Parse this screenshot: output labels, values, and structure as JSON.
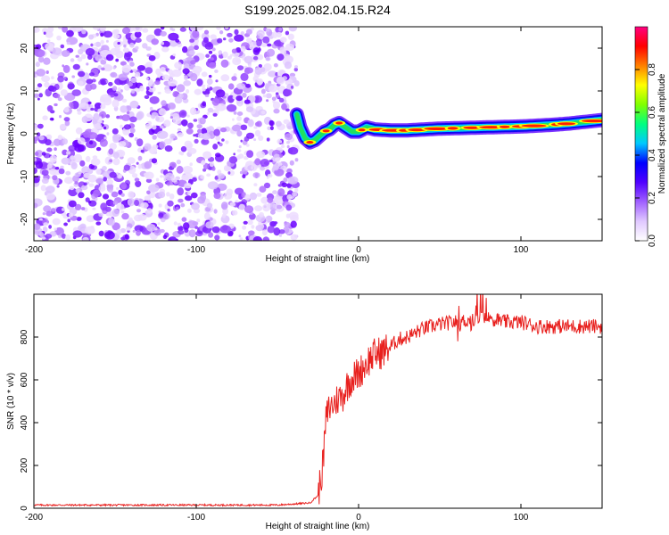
{
  "title": "S199.2025.082.04.15.R24",
  "colors": {
    "snr_line": "#e8201e",
    "spectrum_dots": "#8a2be2",
    "colorbar": [
      "#ffffff",
      "#e0c8ff",
      "#a060ff",
      "#5000ff",
      "#0000ff",
      "#00c8ff",
      "#00ff80",
      "#80ff00",
      "#ffff00",
      "#ff8000",
      "#ff0000",
      "#ff0080"
    ]
  },
  "chart_data": [
    {
      "type": "heatmap",
      "name": "spectrogram",
      "xlabel": "Height of straight line (km)",
      "ylabel": "Frequency (Hz)",
      "xlim": [
        -200,
        150
      ],
      "ylim": [
        -25,
        25
      ],
      "xticks": [
        -200,
        -100,
        0,
        100
      ],
      "yticks": [
        -20,
        -10,
        0,
        10,
        20
      ],
      "grid": false,
      "colorbar": {
        "label": "Normalized spectral amplitude",
        "range": [
          0,
          1
        ],
        "ticks": [
          "0.0",
          "0.2",
          "0.4",
          "0.6",
          "0.8"
        ]
      },
      "noise_region_x": [
        -200,
        -38
      ],
      "ridge": {
        "x": [
          -38,
          -36,
          -33,
          -30,
          -27,
          -24,
          -21,
          -18,
          -15,
          -12,
          -8,
          -4,
          0,
          5,
          10,
          20,
          30,
          40,
          50,
          60,
          70,
          80,
          90,
          100,
          110,
          120,
          130,
          140,
          150
        ],
        "y": [
          4.5,
          1.5,
          -1.0,
          -2.0,
          -1.5,
          -0.5,
          0.5,
          1.0,
          2.0,
          2.5,
          1.5,
          0.5,
          0.5,
          1.5,
          1.0,
          0.8,
          0.8,
          1.0,
          1.2,
          1.3,
          1.4,
          1.5,
          1.6,
          1.7,
          1.9,
          2.1,
          2.4,
          2.8,
          3.2
        ]
      }
    },
    {
      "type": "line",
      "name": "snr",
      "xlabel": "Height of straight line (km)",
      "ylabel": "SNR (10 * v/v)",
      "xlim": [
        -200,
        150
      ],
      "ylim": [
        0,
        1000
      ],
      "xticks": [
        -200,
        -100,
        0,
        100
      ],
      "yticks": [
        0,
        200,
        400,
        600,
        800
      ],
      "grid": false,
      "series": [
        {
          "x": [
            -200,
            -150,
            -100,
            -50,
            -30,
            -25,
            -22,
            -20,
            -18,
            -15,
            -12,
            -10,
            -8,
            -5,
            -2,
            0,
            3,
            6,
            10,
            15,
            20,
            25,
            30,
            35,
            40,
            50,
            60,
            70,
            75,
            80,
            90,
            100,
            110,
            120,
            130,
            140,
            150
          ],
          "y": [
            15,
            15,
            15,
            15,
            25,
            60,
            200,
            420,
            470,
            490,
            520,
            520,
            560,
            600,
            620,
            630,
            660,
            690,
            720,
            730,
            760,
            790,
            800,
            820,
            840,
            860,
            870,
            880,
            900,
            890,
            870,
            870,
            850,
            850,
            850,
            850,
            850
          ]
        }
      ]
    }
  ]
}
